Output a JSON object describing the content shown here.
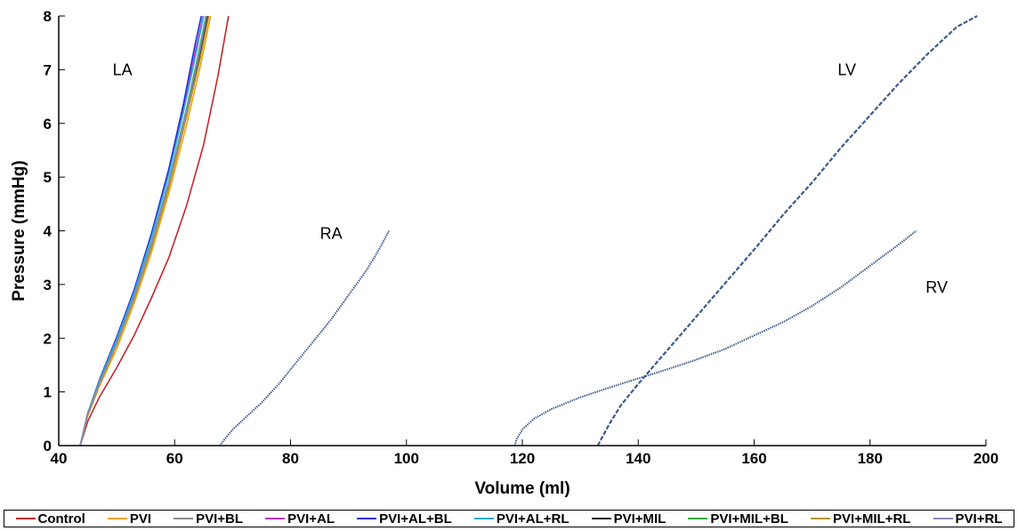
{
  "chart_data": {
    "type": "line",
    "xlabel": "Volume (ml)",
    "ylabel": "Pressure (mmHg)",
    "xlim": [
      40,
      200
    ],
    "ylim": [
      0,
      8
    ],
    "xticks": [
      "40",
      "60",
      "80",
      "100",
      "120",
      "140",
      "160",
      "180",
      "200"
    ],
    "yticks": [
      "0",
      "1",
      "2",
      "3",
      "4",
      "5",
      "6",
      "7",
      "8"
    ],
    "grid": false,
    "legend_position": "bottom",
    "annotations": [
      {
        "text": "LA",
        "x": 51,
        "y": 7.0
      },
      {
        "text": "RA",
        "x": 87,
        "y": 3.95
      },
      {
        "text": "LV",
        "x": 176,
        "y": 7.0
      },
      {
        "text": "RV",
        "x": 191.5,
        "y": 2.95
      }
    ],
    "series": [
      {
        "name": "Control",
        "color": "#c1272d",
        "la_x": [
          43.7,
          45,
          47,
          50,
          53,
          56,
          59,
          62,
          65,
          67.5,
          69.3
        ],
        "la_y": [
          0,
          0.45,
          0.9,
          1.45,
          2.05,
          2.75,
          3.5,
          4.45,
          5.6,
          6.9,
          8.0
        ]
      },
      {
        "name": "PVI",
        "color": "#f0a30a",
        "la_x": [
          43.7,
          45,
          47,
          50,
          53,
          56,
          59,
          62,
          64.5,
          66.2
        ],
        "la_y": [
          0,
          0.55,
          1.1,
          1.8,
          2.65,
          3.6,
          4.7,
          5.95,
          7.1,
          8.0
        ]
      },
      {
        "name": "PVI+BL",
        "color": "#8c8c8c",
        "la_x": [
          43.7,
          45,
          47,
          50,
          53,
          56,
          59,
          62,
          64.3,
          65.6
        ],
        "la_y": [
          0,
          0.58,
          1.15,
          1.9,
          2.75,
          3.75,
          4.9,
          6.2,
          7.3,
          8.0
        ]
      },
      {
        "name": "PVI+AL",
        "color": "#c033c0",
        "la_x": [
          43.7,
          45,
          47,
          50,
          53,
          56,
          59,
          61.5,
          63.6,
          64.9
        ],
        "la_y": [
          0,
          0.6,
          1.2,
          2.0,
          2.85,
          3.9,
          5.1,
          6.25,
          7.35,
          8.0
        ]
      },
      {
        "name": "PVI+AL+BL",
        "color": "#1f2ed6",
        "la_x": [
          43.7,
          45,
          47,
          50,
          53,
          56,
          59,
          61.5,
          63.5,
          64.6
        ],
        "la_y": [
          0,
          0.6,
          1.22,
          2.02,
          2.9,
          3.95,
          5.15,
          6.35,
          7.45,
          8.0
        ]
      },
      {
        "name": "PVI+AL+RL",
        "color": "#29a8e0",
        "la_x": [
          43.7,
          45,
          47,
          50,
          53,
          56,
          59,
          61.5,
          63.7,
          65.0
        ],
        "la_y": [
          0,
          0.6,
          1.2,
          1.98,
          2.85,
          3.88,
          5.05,
          6.2,
          7.3,
          8.0
        ]
      },
      {
        "name": "PVI+MIL",
        "color": "#222222",
        "la_x": [
          43.7,
          45,
          47,
          50,
          53,
          56,
          59,
          62,
          64.3,
          65.7
        ],
        "la_y": [
          0,
          0.58,
          1.15,
          1.9,
          2.75,
          3.72,
          4.85,
          6.15,
          7.25,
          8.0
        ]
      },
      {
        "name": "PVI+MIL+BL",
        "color": "#3aa63a",
        "la_x": [
          43.7,
          45,
          47,
          50,
          53,
          56,
          59,
          62,
          64.1,
          65.4
        ],
        "la_y": [
          0,
          0.59,
          1.17,
          1.92,
          2.78,
          3.78,
          4.92,
          6.25,
          7.3,
          8.0
        ]
      },
      {
        "name": "PVI+MIL+RL",
        "color": "#b8962e",
        "la_x": [
          43.7,
          45,
          47,
          50,
          53,
          56,
          59,
          62,
          64.4,
          65.9
        ],
        "la_y": [
          0,
          0.57,
          1.13,
          1.88,
          2.72,
          3.68,
          4.8,
          6.1,
          7.2,
          8.0
        ]
      },
      {
        "name": "PVI+RL",
        "color": "#8a8ab8",
        "la_x": [
          43.7,
          45,
          47,
          50,
          53,
          56,
          59,
          62,
          64.2,
          65.5
        ],
        "la_y": [
          0,
          0.58,
          1.16,
          1.91,
          2.77,
          3.76,
          4.9,
          6.2,
          7.28,
          8.0
        ]
      }
    ],
    "shared_curves": {
      "color": "#3b5b8c",
      "RA": {
        "x": [
          67.8,
          68.5,
          70,
          72,
          75,
          78,
          81,
          84,
          87,
          90,
          93,
          95,
          97
        ],
        "y": [
          0,
          0.1,
          0.3,
          0.5,
          0.8,
          1.15,
          1.55,
          1.95,
          2.35,
          2.8,
          3.25,
          3.6,
          4.0
        ]
      },
      "LV": {
        "x": [
          133.0,
          133.5,
          135,
          137,
          140,
          144,
          148,
          152,
          156,
          160,
          165,
          170,
          175,
          180,
          185,
          190,
          195,
          198.5
        ],
        "y": [
          0,
          0.1,
          0.4,
          0.75,
          1.15,
          1.65,
          2.15,
          2.65,
          3.15,
          3.65,
          4.3,
          4.9,
          5.55,
          6.15,
          6.75,
          7.3,
          7.8,
          8.0
        ]
      },
      "RV": {
        "x": [
          118.7,
          119,
          120,
          122,
          125,
          130,
          135,
          140,
          145,
          150,
          155,
          160,
          165,
          170,
          175,
          180,
          185,
          188
        ],
        "y": [
          0,
          0.12,
          0.3,
          0.5,
          0.68,
          0.9,
          1.08,
          1.25,
          1.42,
          1.6,
          1.8,
          2.05,
          2.3,
          2.6,
          2.95,
          3.35,
          3.75,
          4.0
        ]
      }
    }
  }
}
